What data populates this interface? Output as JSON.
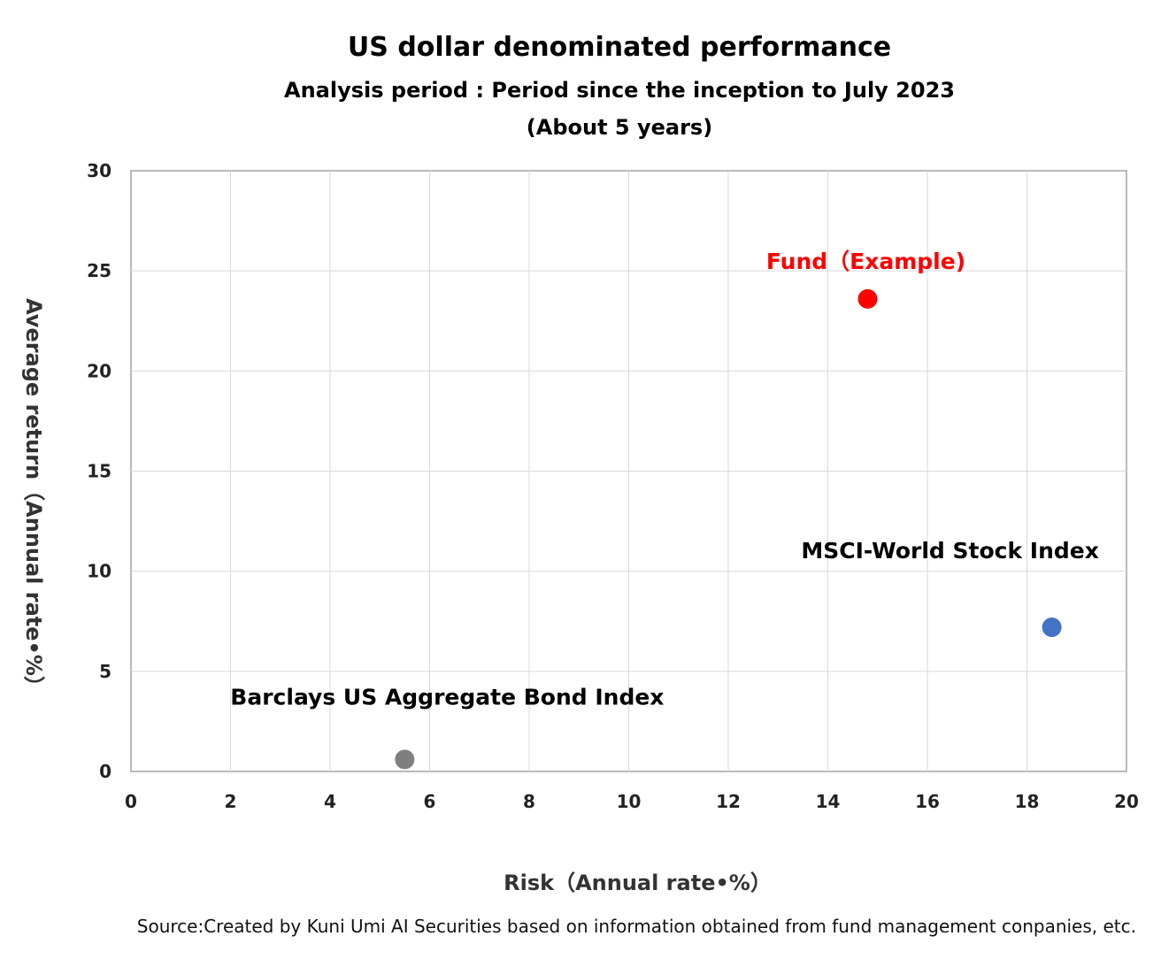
{
  "chart_data": {
    "type": "scatter",
    "title": "US dollar denominated performance",
    "subtitle": "Analysis period : Period since the inception to July 2023",
    "subtitle2": "(About 5 years)",
    "xlabel": "Risk（Annual rate•%）",
    "ylabel": "Average return（Annual rate•%）",
    "xlim": [
      0,
      20
    ],
    "ylim": [
      0,
      30
    ],
    "x_ticks": [
      0,
      2,
      4,
      6,
      8,
      10,
      12,
      14,
      16,
      18,
      20
    ],
    "y_ticks": [
      0,
      5,
      10,
      15,
      20,
      25,
      30
    ],
    "grid": true,
    "points": [
      {
        "name": "Fund（Example)",
        "x": 14.8,
        "y": 23.6,
        "color": "#ff0000",
        "label_color": "#ff0000"
      },
      {
        "name": "MSCI-World Stock Index",
        "x": 18.5,
        "y": 7.2,
        "color": "#4472c4",
        "label_color": "#000000"
      },
      {
        "name": "Barclays US Aggregate Bond Index",
        "x": 5.5,
        "y": 0.6,
        "color": "#7f7f7f",
        "label_color": "#000000"
      }
    ],
    "source": "Source:Created by Kuni Umi AI Securities based on information obtained from fund management conpanies, etc."
  }
}
